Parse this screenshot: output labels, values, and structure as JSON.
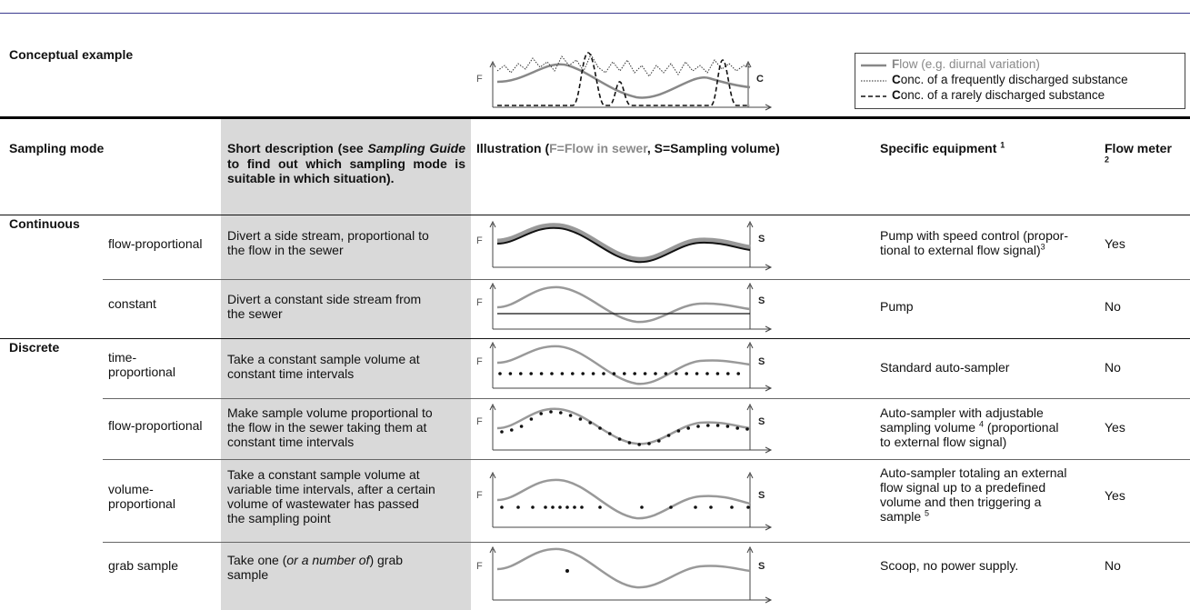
{
  "header": {
    "conceptual_example": "Conceptual example"
  },
  "legend": {
    "items": [
      {
        "lead": "F",
        "rest": "low (e.g. diurnal variation)",
        "style": "solid-grey"
      },
      {
        "lead": "C",
        "rest": "onc. of a frequently discharged substance",
        "style": "dotted"
      },
      {
        "lead": "C",
        "rest": "onc. of a rarely discharged substance",
        "style": "dashed"
      }
    ]
  },
  "axis_labels": {
    "f": "F",
    "c": "C",
    "s": "S"
  },
  "columns": {
    "sampling_mode": "Sampling mode",
    "short_desc_prefix": "Short description (see ",
    "short_desc_italic": "Sampling Guide",
    "short_desc_suffix": " to find out which sampling mode is suitable in which situation).",
    "illus_prefix": "Illustration (",
    "illus_grey": "F=Flow in sewer",
    "illus_suffix": ", S=Sampling volume)",
    "equipment": "Specific equipment",
    "equipment_sup": "1",
    "flow_meter": "Flow meter",
    "flow_meter_sup": "2"
  },
  "groups": {
    "continuous": "Continuous",
    "discrete": "Discrete"
  },
  "rows": [
    {
      "mode": "flow-proportional",
      "desc_lines": [
        "Divert a side stream, proportional to",
        "the flow in the sewer"
      ],
      "equip_lines": [
        "Pump with speed control (propor-",
        "tional to external flow signal)"
      ],
      "equip_sup": "3",
      "flow_meter": "Yes"
    },
    {
      "mode": "constant",
      "desc_lines": [
        "Divert a constant side stream from",
        "the sewer"
      ],
      "equip_lines": [
        "Pump"
      ],
      "equip_sup": "",
      "flow_meter": "No"
    },
    {
      "mode_lines": [
        "time-",
        "proportional"
      ],
      "desc_lines": [
        "Take a constant sample volume at",
        "constant time intervals"
      ],
      "equip_lines": [
        "Standard auto-sampler"
      ],
      "equip_sup": "",
      "flow_meter": "No"
    },
    {
      "mode": "flow-proportional",
      "desc_lines": [
        "Make sample volume proportional to",
        "the flow in the sewer taking them at",
        "constant time intervals"
      ],
      "equip_lines": [
        "Auto-sampler with adjustable",
        "sampling volume",
        "(proportional",
        "to external flow signal)"
      ],
      "equip_sup": "4",
      "flow_meter": "Yes"
    },
    {
      "mode_lines": [
        "volume-",
        "proportional"
      ],
      "desc_lines": [
        "Take a constant sample volume at",
        "variable time intervals, after a certain",
        "volume of wastewater has passed",
        "the sampling point"
      ],
      "equip_lines": [
        "Auto-sampler totaling an external",
        "flow signal up to a predefined",
        "volume and then triggering a",
        "sample"
      ],
      "equip_sup": "5",
      "flow_meter": "Yes"
    },
    {
      "mode": "grab sample",
      "desc_prefix": "Take one (",
      "desc_italic": "or a number of",
      "desc_suffix": ") grab",
      "desc_line2": "sample",
      "equip_lines": [
        "Scoop, no power supply."
      ],
      "equip_sup": "",
      "flow_meter": "No"
    }
  ]
}
